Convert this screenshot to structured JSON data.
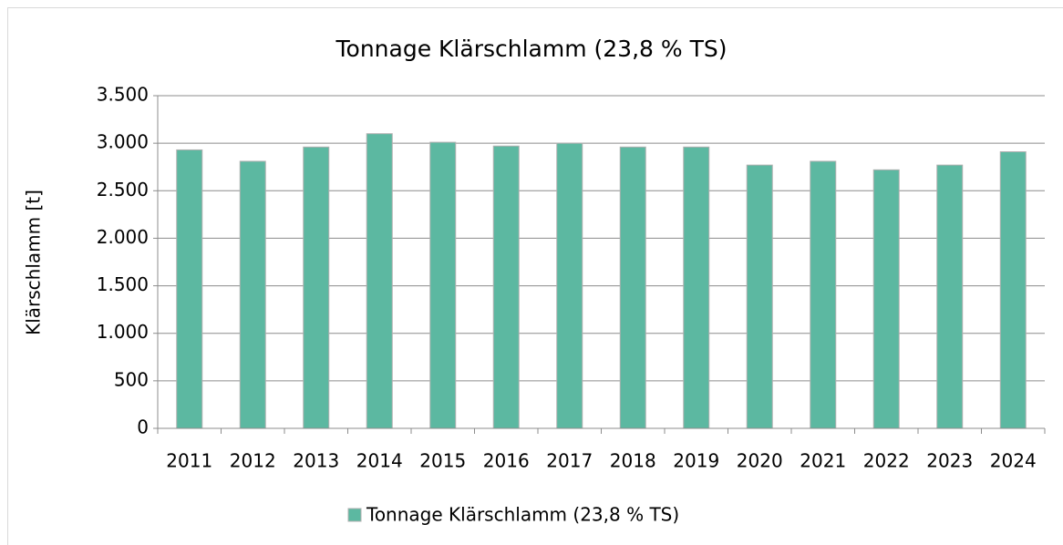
{
  "chart_data": {
    "type": "bar",
    "title": "Tonnage Klärschlamm (23,8 % TS)",
    "y_label": "Klärschlamm [t]",
    "categories": [
      "2011",
      "2012",
      "2013",
      "2014",
      "2015",
      "2016",
      "2017",
      "2018",
      "2019",
      "2020",
      "2021",
      "2022",
      "2023",
      "2024"
    ],
    "series": [
      {
        "name": "Tonnage Klärschlamm (23,8 % TS)",
        "color": "#5cb8a1",
        "values": [
          2930,
          2810,
          2960,
          3100,
          3010,
          2970,
          3000,
          2960,
          2960,
          2770,
          2810,
          2720,
          2770,
          2910
        ]
      }
    ],
    "ylim": [
      0,
      3500
    ],
    "yticks": [
      0,
      500,
      {
        "value": 1000,
        "label": "1.000"
      },
      {
        "value": 1500,
        "label": "1.500"
      },
      {
        "value": 2000,
        "label": "2.000"
      },
      {
        "value": 2500,
        "label": "2.500"
      },
      {
        "value": 3000,
        "label": "3.000"
      },
      {
        "value": 3500,
        "label": "3.500"
      }
    ],
    "grid": true,
    "legend": "bottom"
  }
}
